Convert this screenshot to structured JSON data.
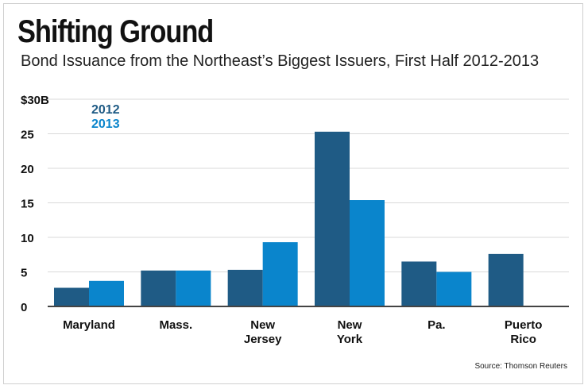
{
  "title": "Shifting Ground",
  "subtitle": "Bond Issuance from the Northeast’s Biggest Issuers, First Half 2012-2013",
  "source": "Source: Thomson Reuters",
  "colors": {
    "s2012": "#1f5b85",
    "s2013": "#0a85cc",
    "grid": "#d9d9d9",
    "axis": "#444444"
  },
  "chart_data": {
    "type": "bar",
    "categories": [
      [
        "Maryland"
      ],
      [
        "Mass."
      ],
      [
        "New",
        "Jersey"
      ],
      [
        "New",
        "York"
      ],
      [
        "Pa."
      ],
      [
        "Puerto",
        "Rico"
      ]
    ],
    "series": [
      {
        "name": "2012",
        "values": [
          2.7,
          5.2,
          5.3,
          25.3,
          6.5,
          7.6
        ]
      },
      {
        "name": "2013",
        "values": [
          3.7,
          5.2,
          9.3,
          15.4,
          5.0,
          0
        ]
      }
    ],
    "ylim": [
      0,
      30
    ],
    "yticks": [
      "0",
      "5",
      "10",
      "15",
      "20",
      "25",
      "$30B"
    ],
    "legend": [
      "2012",
      "2013"
    ],
    "legend_position": "top-left",
    "grid": true
  }
}
